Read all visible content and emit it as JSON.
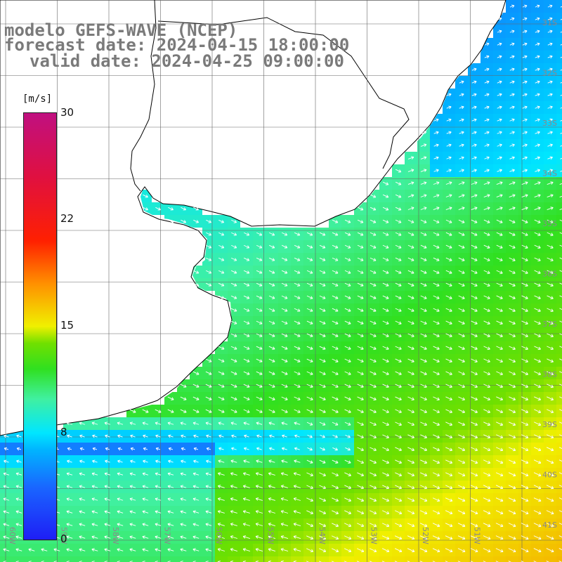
{
  "header": {
    "model": "modelo GEFS-WAVE (NCEP)",
    "forecast": "forecast date: 2024-04-15 18:00:00",
    "valid": "valid date: 2024-04-25 09:00:00"
  },
  "colorbar": {
    "unit": "[m/s]",
    "ticks": [
      "0",
      "8",
      "15",
      "22",
      "30"
    ],
    "colors": [
      "#1e1ef5",
      "#00e6ff",
      "#30e020",
      "#f0f000",
      "#ff2000",
      "#c01080"
    ]
  },
  "map": {
    "lat_labels": [
      "31S",
      "32S",
      "33S",
      "34S",
      "35S",
      "36S",
      "37S",
      "38S",
      "39S",
      "40S",
      "41S"
    ],
    "lon_labels": [
      "60W",
      "59W",
      "58W",
      "57W",
      "56W",
      "55W",
      "54W",
      "53W",
      "52W",
      "51W"
    ],
    "land_color": "#ffffff",
    "coast_color": "#000000",
    "grid_color": "#666666"
  }
}
